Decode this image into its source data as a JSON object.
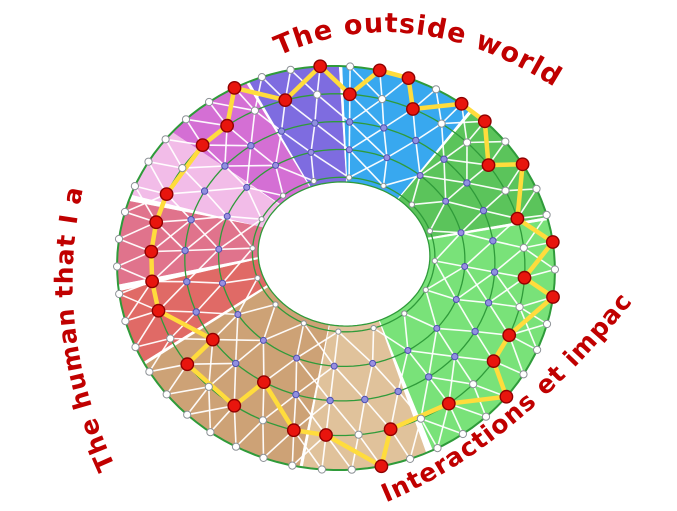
{
  "labels": [
    {
      "text": "The outside world",
      "color": "#C00000"
    },
    {
      "text": "The human that I am",
      "color": "#C00000"
    },
    {
      "text": "Interactions et impact",
      "color": "#C00000"
    }
  ],
  "wheel": {
    "background": "#FFFFFF",
    "ring_line_color": "#2F9B3A",
    "mesh_color": "#FFFFFF",
    "sectors": [
      {
        "name": "blue",
        "color": "#38A8EF",
        "start": -92,
        "end": -55
      },
      {
        "name": "green-dark",
        "color": "#5BC45B",
        "start": -55,
        "end": -18
      },
      {
        "name": "green-light",
        "color": "#79E279",
        "start": -18,
        "end": 62
      },
      {
        "name": "tan-light",
        "color": "#E0C29B",
        "start": 62,
        "end": 96
      },
      {
        "name": "tan-dark",
        "color": "#CDA276",
        "start": 96,
        "end": 148
      },
      {
        "name": "red-salmon",
        "color": "#E06A66",
        "start": 148,
        "end": 171
      },
      {
        "name": "red-rose",
        "color": "#E0738C",
        "start": 171,
        "end": 197
      },
      {
        "name": "pink-pale",
        "color": "#F2BCE8",
        "start": 197,
        "end": 218
      },
      {
        "name": "orchid",
        "color": "#D46FD4",
        "start": 218,
        "end": 243
      },
      {
        "name": "purple",
        "color": "#7E6CE0",
        "start": 243,
        "end": 268
      }
    ],
    "rings": [
      {
        "t": 1.0,
        "count": 46,
        "fill": "#FFFFFF",
        "stroke": "#8C9196",
        "radius": 3.6
      },
      {
        "t": 0.76,
        "count": 36,
        "fill": "#FFFFFF",
        "stroke": "#8C9196",
        "radius": 3.6
      },
      {
        "t": 0.52,
        "count": 28,
        "fill": "#9090E0",
        "stroke": "#5050B0",
        "radius": 3.2
      },
      {
        "t": 0.28,
        "count": 20,
        "fill": "#9A8FE2",
        "stroke": "#5050B0",
        "radius": 3.0
      },
      {
        "t": 0.04,
        "count": 16,
        "fill": "#FFFFFF",
        "stroke": "#8C9196",
        "radius": 2.6
      }
    ],
    "red_nodes": {
      "fill": "#E8150D",
      "stroke": "#8F0000",
      "radius": 6.2
    },
    "yellow_path": {
      "color": "#FFDC3C",
      "width": 4.5,
      "points": [
        [
          1,
          0
        ],
        [
          0,
          1
        ],
        [
          0,
          2
        ],
        [
          1,
          2
        ],
        [
          0,
          4
        ],
        [
          0,
          5
        ],
        [
          1,
          5
        ],
        [
          0,
          7
        ],
        [
          1,
          7
        ],
        [
          0,
          10
        ],
        [
          1,
          9
        ],
        [
          0,
          12
        ],
        [
          1,
          11
        ],
        [
          1,
          12
        ],
        [
          0,
          16
        ],
        [
          1,
          14
        ],
        [
          1,
          16
        ],
        [
          0,
          21
        ],
        [
          1,
          18
        ],
        [
          1,
          19
        ],
        [
          2,
          16
        ],
        [
          1,
          21
        ],
        [
          1,
          23
        ],
        [
          2,
          18
        ],
        [
          1,
          25
        ],
        [
          1,
          26
        ],
        [
          1,
          27
        ],
        [
          1,
          28
        ],
        [
          1,
          29
        ],
        [
          1,
          31
        ],
        [
          1,
          32
        ],
        [
          0,
          42
        ],
        [
          1,
          34
        ],
        [
          0,
          45
        ]
      ]
    }
  }
}
